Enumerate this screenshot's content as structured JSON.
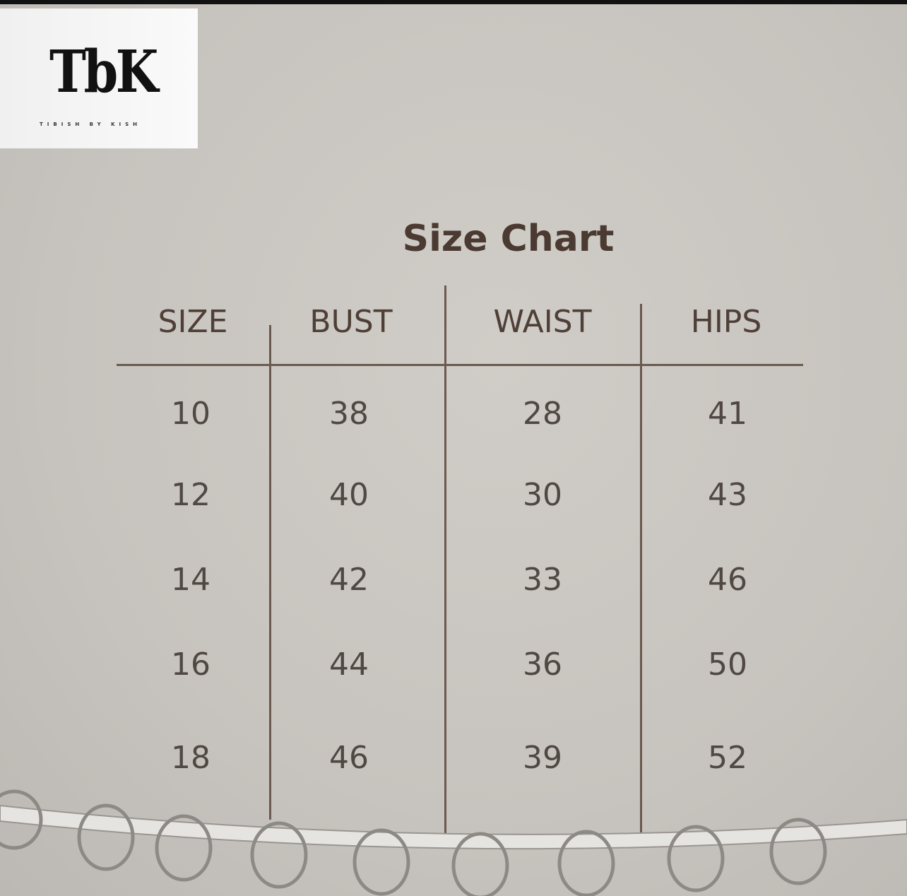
{
  "logo": {
    "mark": "TbK",
    "tagline": "TIBISH BY KISH"
  },
  "title": "Size Chart",
  "table": {
    "headers": [
      "SIZE",
      "BUST",
      "WAIST",
      "HIPS"
    ],
    "rows": [
      [
        "10",
        "38",
        "28",
        "41"
      ],
      [
        "12",
        "40",
        "30",
        "43"
      ],
      [
        "14",
        "42",
        "33",
        "46"
      ],
      [
        "16",
        "44",
        "36",
        "50"
      ],
      [
        "18",
        "46",
        "39",
        "52"
      ]
    ]
  },
  "colors": {
    "background": "#c9c5c0",
    "text": "#4b3b33",
    "lines": "#6a5a50"
  }
}
